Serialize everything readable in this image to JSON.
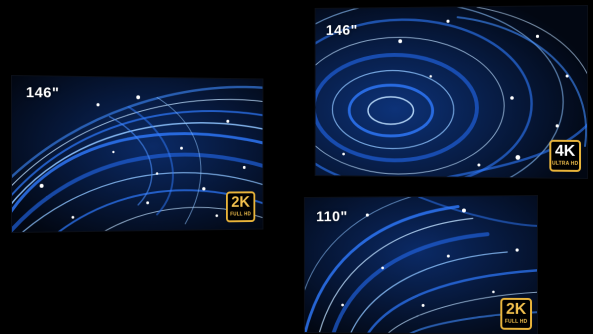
{
  "screens": [
    {
      "size_label": "146\"",
      "resolution": "2K",
      "resolution_sub": "FULL HD"
    },
    {
      "size_label": "146\"",
      "resolution": "4K",
      "resolution_sub": "ULTRA HD"
    },
    {
      "size_label": "110\"",
      "resolution": "2K",
      "resolution_sub": "FULL HD"
    }
  ],
  "colors": {
    "background": "#000000",
    "screen_dark": "#030816",
    "streak_blue": "#2f7bff",
    "streak_light": "#bfe0ff",
    "badge_gold": "#e9b43a"
  }
}
